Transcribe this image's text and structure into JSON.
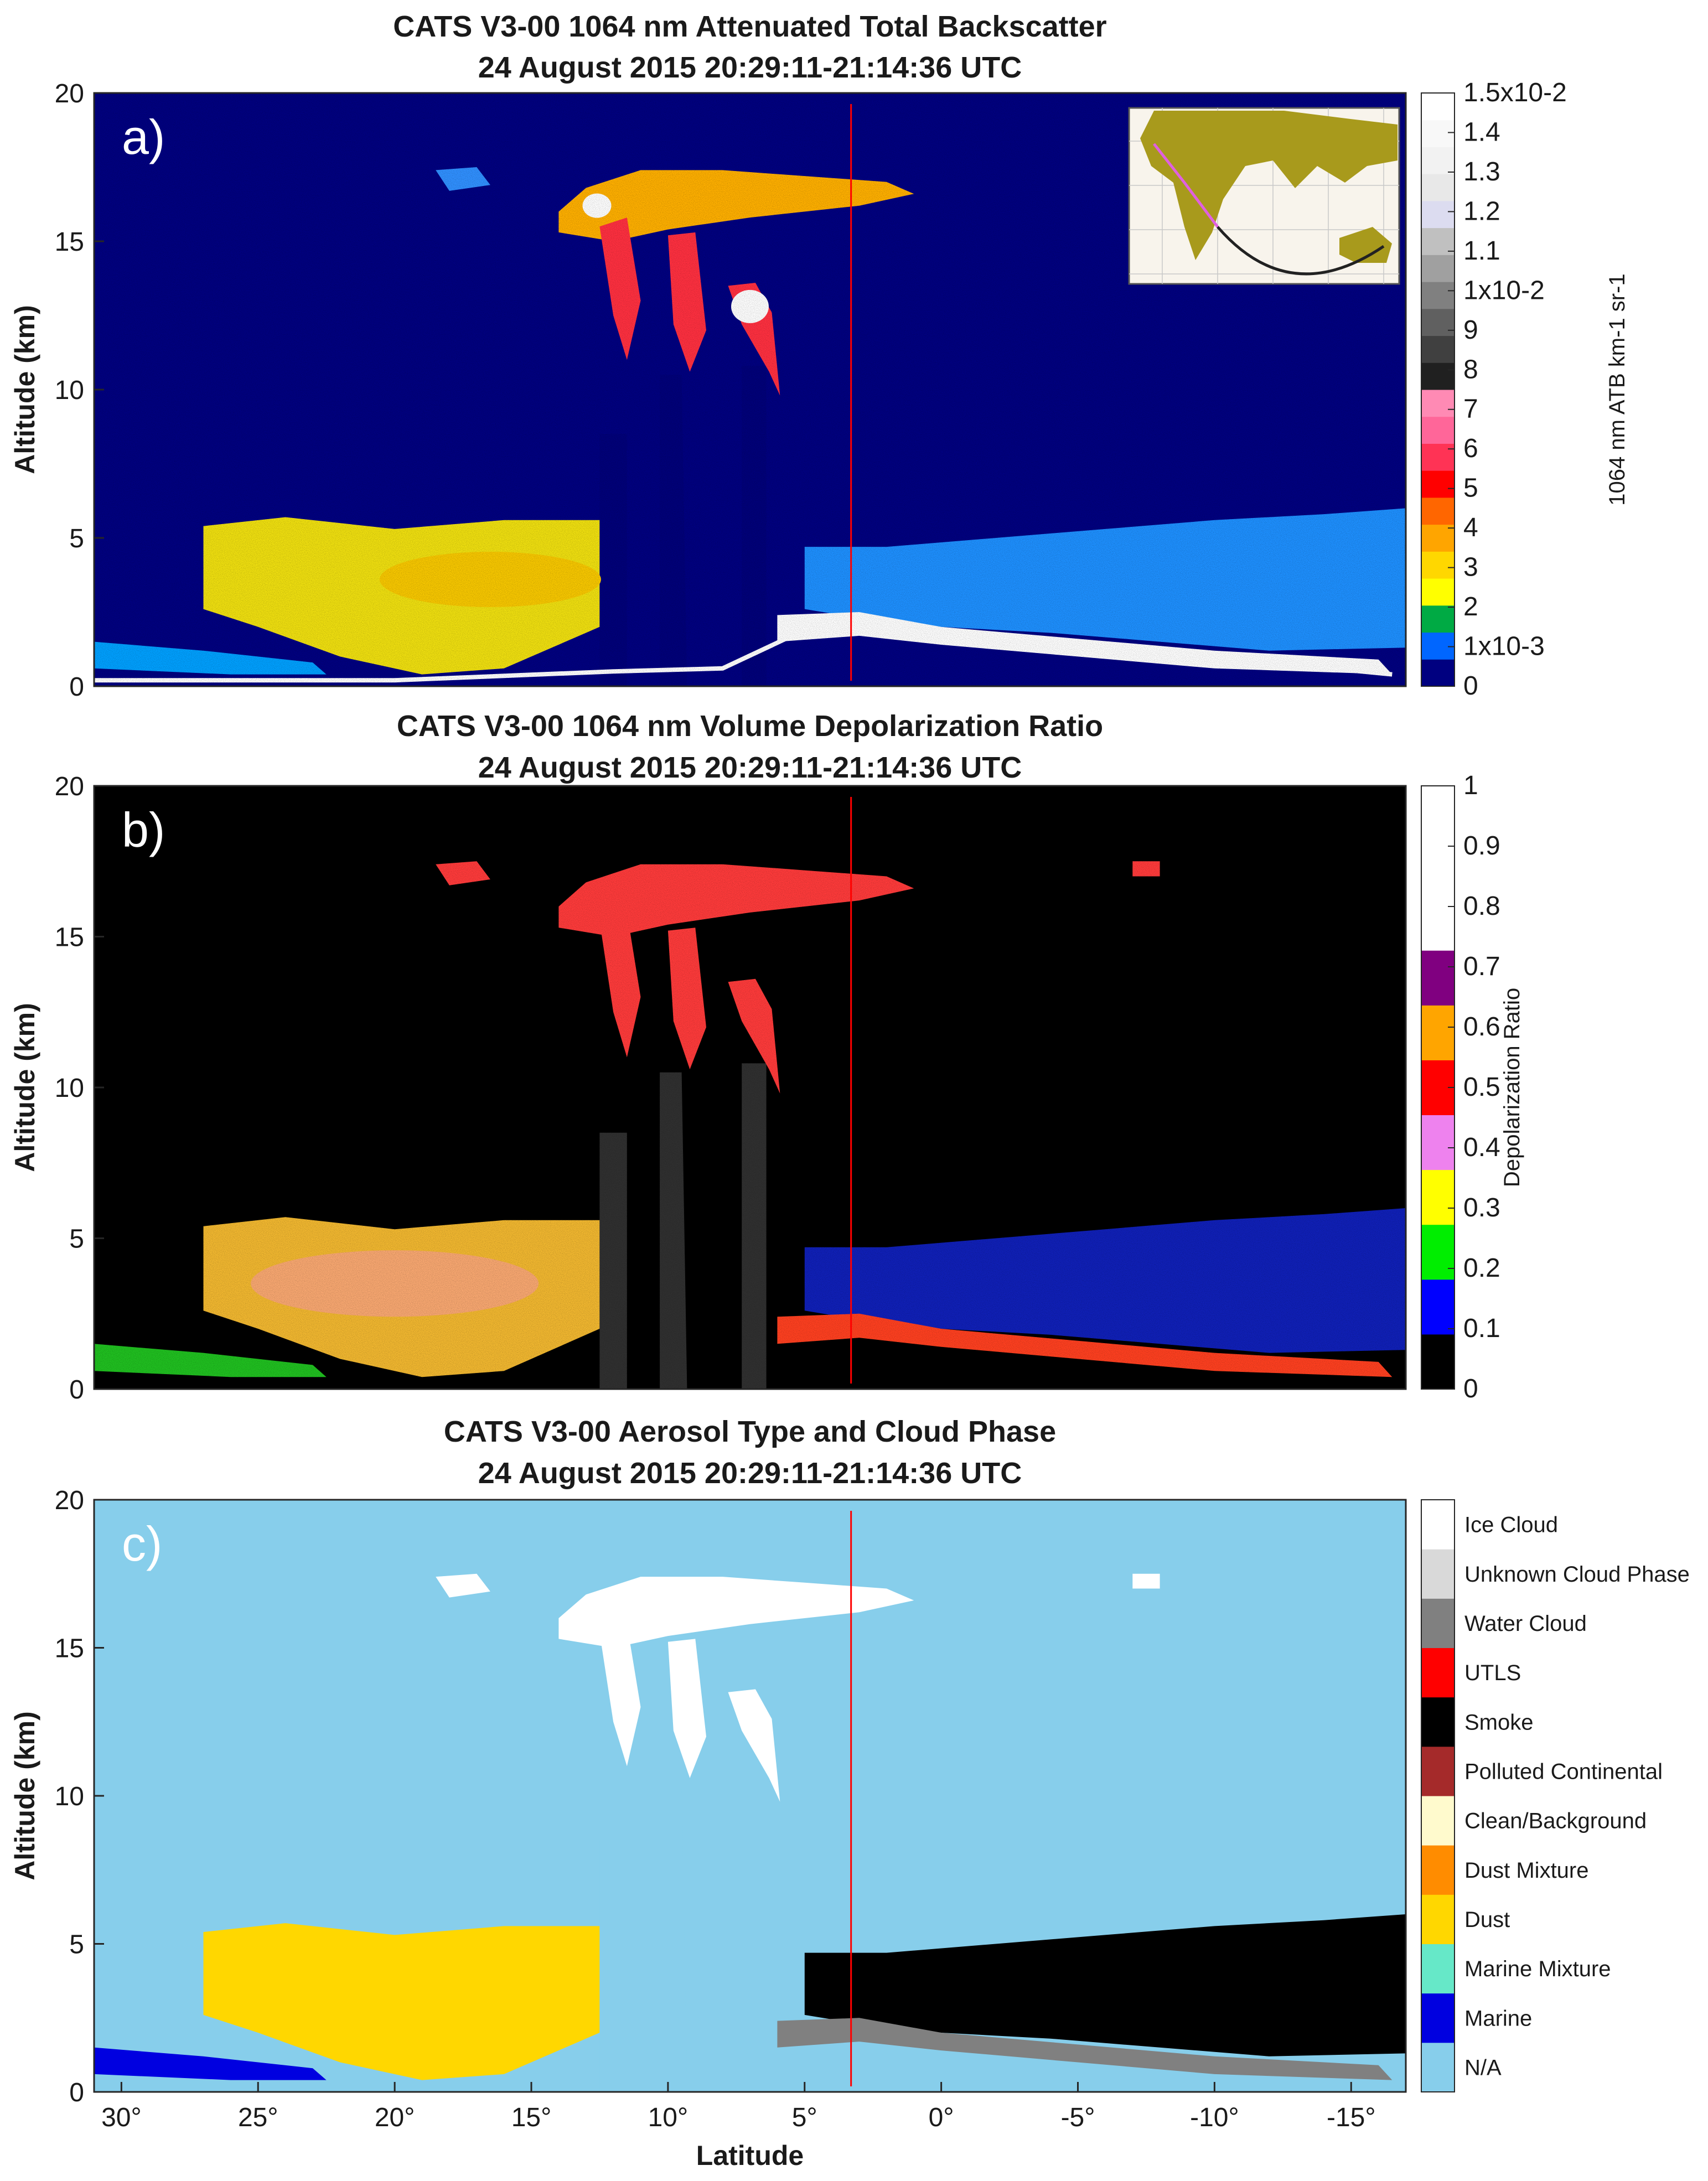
{
  "chart_data": [
    {
      "type": "heatmap",
      "panel_label": "a)",
      "title": "CATS V3-00 1064 nm Attenuated Total Backscatter",
      "subtitle": "24 August 2015 20:29:11-21:14:36 UTC",
      "ylabel": "Altitude (km)",
      "yticks": [
        "0",
        "5",
        "10",
        "15",
        "20"
      ],
      "ylim": [
        0,
        20
      ],
      "xlim": [
        31,
        -17
      ],
      "marker_latitude": 3.3,
      "inset": "map-with-track",
      "colorbar": {
        "label": "1064 nm ATB km-1 sr-1",
        "colors": [
          "#000080",
          "#0066ff",
          "#00aa44",
          "#ffff00",
          "#ffd700",
          "#ffa500",
          "#ff6600",
          "#ff0000",
          "#ff3355",
          "#ff6699",
          "#ff8ab4",
          "#202020",
          "#404040",
          "#606060",
          "#808080",
          "#a0a0a0",
          "#c0c0c0",
          "#dcdcf0",
          "#e8e8e8",
          "#f2f2f2",
          "#f8f8f8",
          "#ffffff"
        ],
        "ticks": [
          "0",
          "1x10-3",
          "2",
          "3",
          "4",
          "5",
          "6",
          "7",
          "8",
          "9",
          "1x10-2",
          "1.1",
          "1.2",
          "1.3",
          "1.4",
          "1.5x10-2"
        ]
      },
      "background_color": "#000080"
    },
    {
      "type": "heatmap",
      "panel_label": "b)",
      "title": "CATS V3-00 1064 nm Volume Depolarization Ratio",
      "subtitle": "24 August 2015 20:29:11-21:14:36 UTC",
      "ylabel": "Altitude (km)",
      "yticks": [
        "0",
        "5",
        "10",
        "15",
        "20"
      ],
      "ylim": [
        0,
        20
      ],
      "xlim": [
        31,
        -17
      ],
      "marker_latitude": 3.3,
      "colorbar": {
        "label": "Depolarization Ratio",
        "colors": [
          "#000000",
          "#0000ff",
          "#00ee00",
          "#ffff00",
          "#ee82ee",
          "#ff0000",
          "#ffa500",
          "#800080",
          "#ffffff",
          "#ffffff",
          "#ffffff"
        ],
        "ticks": [
          "0",
          "0.1",
          "0.2",
          "0.3",
          "0.4",
          "0.5",
          "0.6",
          "0.7",
          "0.8",
          "0.9",
          "1"
        ]
      },
      "background_color": "#000000"
    },
    {
      "type": "heatmap",
      "panel_label": "c)",
      "title": "CATS V3-00 Aerosol Type and Cloud Phase",
      "subtitle": "24 August 2015 20:29:11-21:14:36 UTC",
      "ylabel": "Altitude (km)",
      "xlabel": "Latitude",
      "yticks": [
        "0",
        "5",
        "10",
        "15",
        "20"
      ],
      "xticks": [
        "30°",
        "25°",
        "20°",
        "15°",
        "10°",
        "5°",
        "0°",
        "-5°",
        "-10°",
        "-15°"
      ],
      "xtick_values": [
        30,
        25,
        20,
        15,
        10,
        5,
        0,
        -5,
        -10,
        -15
      ],
      "ylim": [
        0,
        20
      ],
      "xlim": [
        31,
        -17
      ],
      "marker_latitude": 3.3,
      "colorbar": {
        "classes": [
          {
            "name": "N/A",
            "color": "#87ceeb"
          },
          {
            "name": "Marine",
            "color": "#0000e0"
          },
          {
            "name": "Marine Mixture",
            "color": "#66e8c8"
          },
          {
            "name": "Dust",
            "color": "#ffd700"
          },
          {
            "name": "Dust Mixture",
            "color": "#ff8c00"
          },
          {
            "name": "Clean/Background",
            "color": "#fffacd"
          },
          {
            "name": "Polluted Continental",
            "color": "#a52a2a"
          },
          {
            "name": "Smoke",
            "color": "#000000"
          },
          {
            "name": "UTLS",
            "color": "#ff0000"
          },
          {
            "name": "Water Cloud",
            "color": "#808080"
          },
          {
            "name": "Unknown Cloud Phase",
            "color": "#d9d9d9"
          },
          {
            "name": "Ice Cloud",
            "color": "#ffffff"
          }
        ]
      },
      "background_color": "#87ceeb"
    }
  ]
}
